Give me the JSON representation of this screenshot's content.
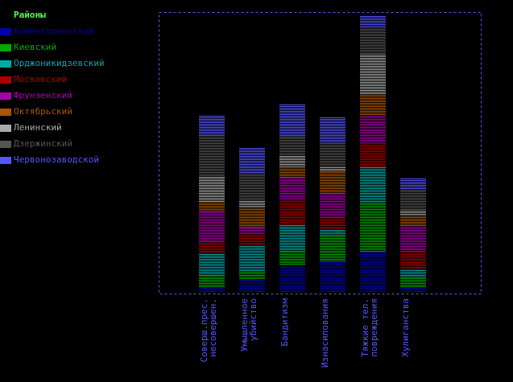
{
  "chart_data": {
    "type": "bar",
    "stacked": true,
    "title": "",
    "xlabel": "",
    "ylabel": "",
    "legend_title": "Районы",
    "legend_position": "left",
    "categories": [
      [
        "Соверш.прес.",
        "несовершен."
      ],
      [
        "Умышленное",
        "убийство"
      ],
      [
        "Бандитизм"
      ],
      [
        "Изнасилования"
      ],
      [
        "Тяжкие тел.",
        "повреждения"
      ],
      [
        "Хулиганства"
      ]
    ],
    "series": [
      {
        "name": "Коминтерновский",
        "color": "#0000aa",
        "values": [
          6,
          16,
          33,
          37,
          50,
          5
        ]
      },
      {
        "name": "Киевский",
        "color": "#00aa00",
        "values": [
          14,
          10,
          16,
          33,
          59,
          12
        ]
      },
      {
        "name": "Орджоникидзевский",
        "color": "#00aaaa",
        "values": [
          27,
          32,
          34,
          7,
          47,
          11
        ]
      },
      {
        "name": "Московский",
        "color": "#aa0000",
        "values": [
          15,
          14,
          32,
          14,
          29,
          21
        ]
      },
      {
        "name": "Фрунзенский",
        "color": "#aa00aa",
        "values": [
          38,
          8,
          26,
          31,
          34,
          32
        ]
      },
      {
        "name": "Октябрьский",
        "color": "#aa5500",
        "values": [
          12,
          26,
          14,
          27,
          26,
          14
        ]
      },
      {
        "name": "Ленинский",
        "color": "#aaaaaa",
        "values": [
          32,
          7,
          14,
          6,
          51,
          7
        ]
      },
      {
        "name": "Дзержинский",
        "color": "#555555",
        "values": [
          49,
          34,
          23,
          31,
          34,
          26
        ]
      },
      {
        "name": "Червонозаводской",
        "color": "#5555ff",
        "values": [
          26,
          32,
          42,
          32,
          13,
          14
        ]
      }
    ],
    "ylim": [
      0,
      350
    ],
    "grid": false,
    "frame_color": "#5555ff",
    "label_color": "#5555ff"
  }
}
